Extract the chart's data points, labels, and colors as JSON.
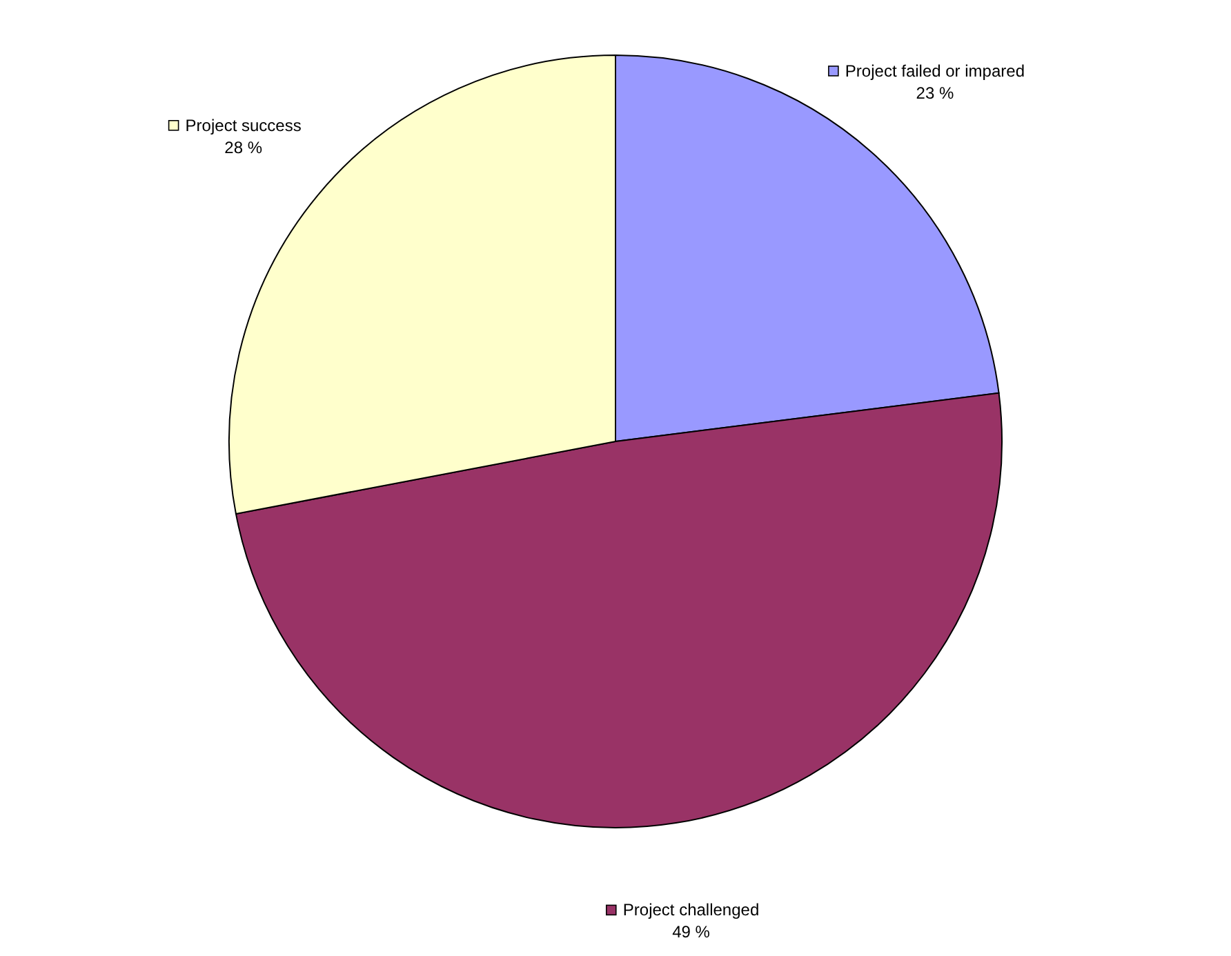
{
  "chart_data": {
    "type": "pie",
    "categories": [
      "Project failed or impared",
      "Project challenged",
      "Project success"
    ],
    "values": [
      23,
      49,
      28
    ],
    "colors": [
      "#9999ff",
      "#993366",
      "#ffffcc"
    ],
    "value_labels": [
      "23 %",
      "49 %",
      "28 %"
    ],
    "legend": "bottom left"
  }
}
